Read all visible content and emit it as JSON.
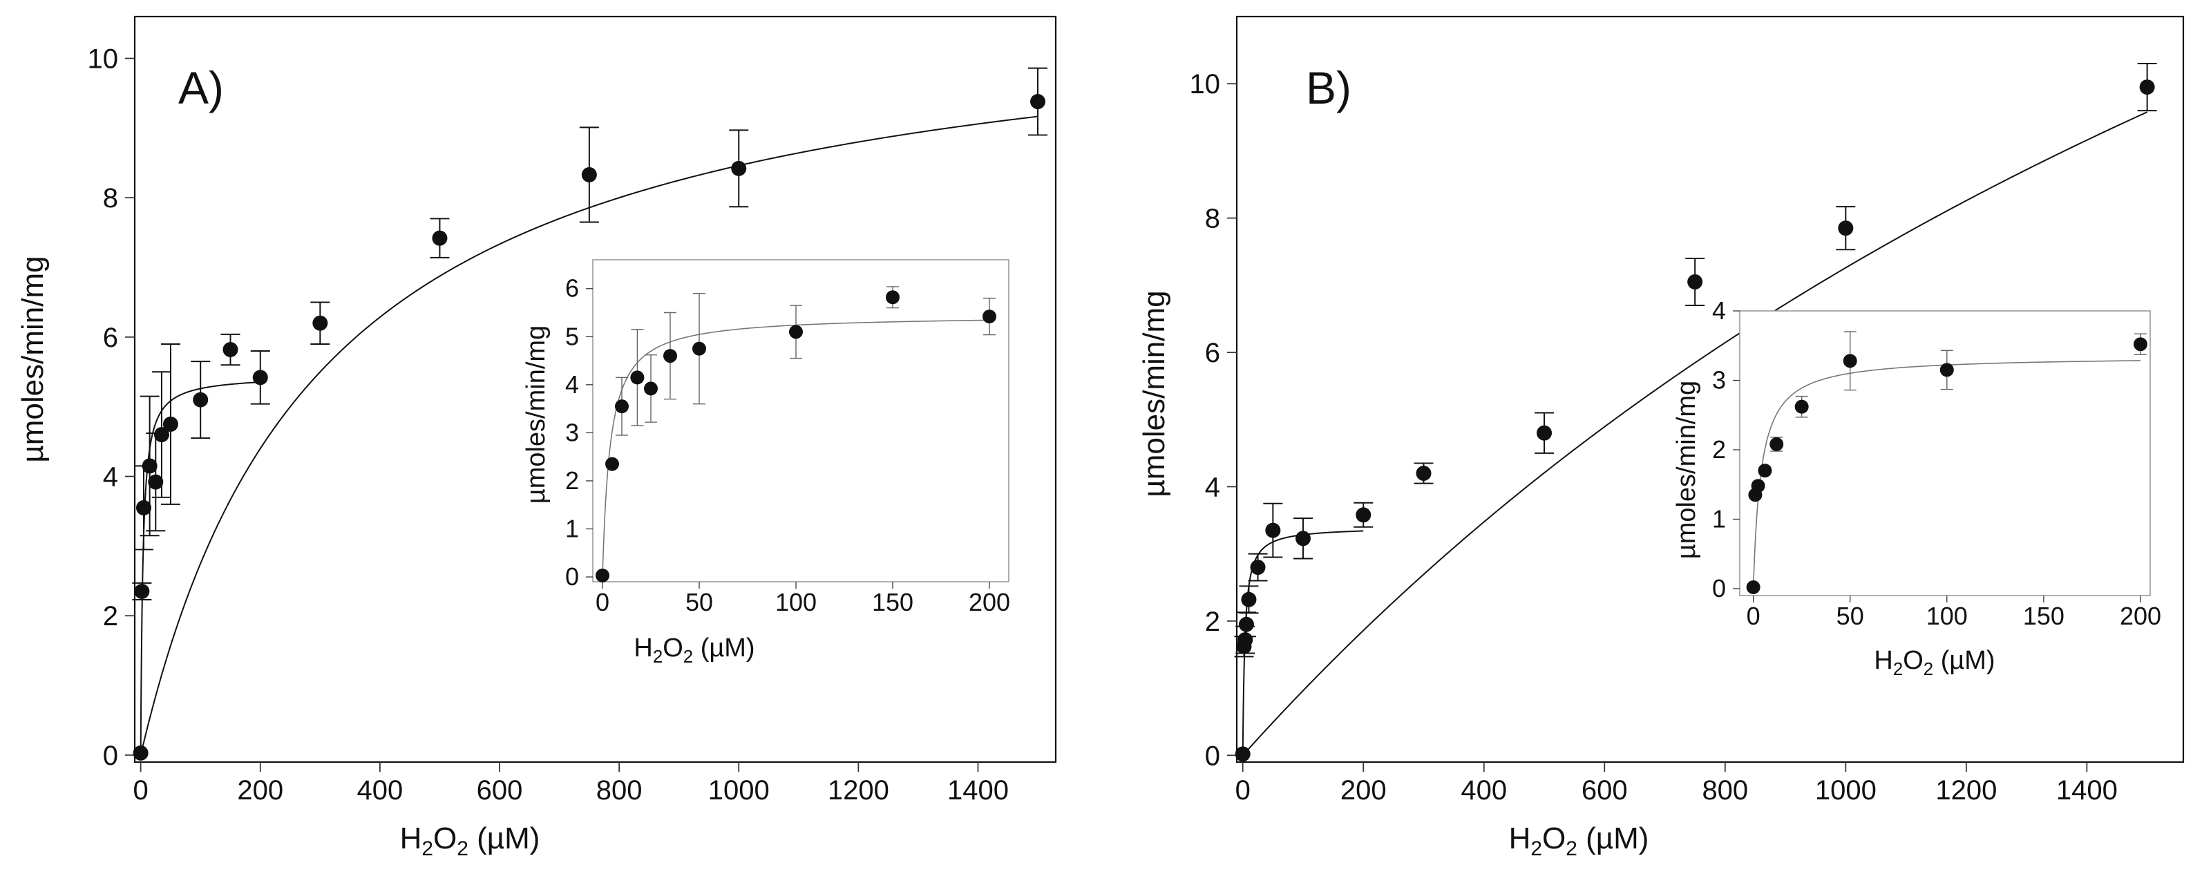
{
  "figure": {
    "panels": [
      {
        "label": "A)",
        "x_label": "H2O2 (µM)",
        "y_label": "µmoles/min/mg"
      },
      {
        "label": "B)",
        "x_label": "H2O2 (µM)",
        "y_label": "µmoles/min/mg"
      }
    ]
  },
  "chart_data": [
    {
      "id": "A-main",
      "type": "scatter",
      "title": "A)",
      "xlabel": "H2O2 (µM)",
      "ylabel": "µmoles/min/mg",
      "xlim": [
        -10,
        1530
      ],
      "ylim": [
        -0.1,
        10.6
      ],
      "xticks": [
        0,
        200,
        400,
        600,
        800,
        1000,
        1200,
        1400
      ],
      "yticks": [
        0,
        2,
        4,
        6,
        8,
        10
      ],
      "points": [
        {
          "x": 0,
          "y": 0.03,
          "err": 0
        },
        {
          "x": 2,
          "y": 2.35,
          "err": 0.12
        },
        {
          "x": 5,
          "y": 3.55,
          "err": 0.6
        },
        {
          "x": 15,
          "y": 4.15,
          "err": 1.0
        },
        {
          "x": 25,
          "y": 3.92,
          "err": 0.7
        },
        {
          "x": 35,
          "y": 4.6,
          "err": 0.9
        },
        {
          "x": 50,
          "y": 4.75,
          "err": 1.15
        },
        {
          "x": 100,
          "y": 5.1,
          "err": 0.55
        },
        {
          "x": 150,
          "y": 5.82,
          "err": 0.22
        },
        {
          "x": 200,
          "y": 5.42,
          "err": 0.38
        },
        {
          "x": 300,
          "y": 6.2,
          "err": 0.3
        },
        {
          "x": 500,
          "y": 7.42,
          "err": 0.28
        },
        {
          "x": 750,
          "y": 8.33,
          "err": 0.68
        },
        {
          "x": 1000,
          "y": 8.42,
          "err": 0.55
        },
        {
          "x": 1500,
          "y": 9.38,
          "err": 0.48
        }
      ],
      "fits": [
        {
          "vmax": 11.0,
          "km": 300,
          "x_start": 0,
          "x_end": 1500
        },
        {
          "vmax": 5.45,
          "km": 3.6,
          "x_start": 0,
          "x_end": 200
        }
      ]
    },
    {
      "id": "A-inset",
      "type": "scatter",
      "xlabel": "H2O2 (µM)",
      "ylabel": "µmoles/min/mg",
      "xlim": [
        -5,
        210
      ],
      "ylim": [
        -0.1,
        6.6
      ],
      "xticks": [
        0,
        50,
        100,
        150,
        200
      ],
      "yticks": [
        0,
        1,
        2,
        3,
        4,
        5,
        6
      ],
      "points": [
        {
          "x": 0,
          "y": 0.03,
          "err": 0
        },
        {
          "x": 5,
          "y": 2.35,
          "err": 0
        },
        {
          "x": 10,
          "y": 3.55,
          "err": 0.6
        },
        {
          "x": 18,
          "y": 4.15,
          "err": 1.0
        },
        {
          "x": 25,
          "y": 3.92,
          "err": 0.7
        },
        {
          "x": 35,
          "y": 4.6,
          "err": 0.9
        },
        {
          "x": 50,
          "y": 4.75,
          "err": 1.15
        },
        {
          "x": 100,
          "y": 5.1,
          "err": 0.55
        },
        {
          "x": 150,
          "y": 5.82,
          "err": 0.22
        },
        {
          "x": 200,
          "y": 5.42,
          "err": 0.38
        }
      ],
      "fits": [
        {
          "vmax": 5.45,
          "km": 4.0,
          "x_start": 0,
          "x_end": 200
        }
      ]
    },
    {
      "id": "B-main",
      "type": "scatter",
      "title": "B)",
      "xlabel": "H2O2 (µM)",
      "ylabel": "µmoles/min/mg",
      "xlim": [
        -10,
        1560
      ],
      "ylim": [
        -0.1,
        11.0
      ],
      "xticks": [
        0,
        200,
        400,
        600,
        800,
        1000,
        1200,
        1400
      ],
      "yticks": [
        0,
        2,
        4,
        6,
        8,
        10
      ],
      "points": [
        {
          "x": 0,
          "y": 0.02,
          "err": 0
        },
        {
          "x": 2,
          "y": 1.62,
          "err": 0.15
        },
        {
          "x": 4,
          "y": 1.72,
          "err": 0.2
        },
        {
          "x": 6,
          "y": 1.95,
          "err": 0.18
        },
        {
          "x": 10,
          "y": 2.32,
          "err": 0.2
        },
        {
          "x": 25,
          "y": 2.8,
          "err": 0.2
        },
        {
          "x": 50,
          "y": 3.35,
          "err": 0.4
        },
        {
          "x": 100,
          "y": 3.23,
          "err": 0.3
        },
        {
          "x": 200,
          "y": 3.58,
          "err": 0.18
        },
        {
          "x": 300,
          "y": 4.2,
          "err": 0.15
        },
        {
          "x": 500,
          "y": 4.8,
          "err": 0.3
        },
        {
          "x": 750,
          "y": 7.05,
          "err": 0.35
        },
        {
          "x": 1000,
          "y": 7.85,
          "err": 0.32
        },
        {
          "x": 1500,
          "y": 9.95,
          "err": 0.35
        }
      ],
      "fits": [
        {
          "vmax": 26.5,
          "km": 2650,
          "x_start": 0,
          "x_end": 1500
        },
        {
          "vmax": 3.4,
          "km": 3.5,
          "x_start": 0,
          "x_end": 200
        }
      ]
    },
    {
      "id": "B-inset",
      "type": "scatter",
      "xlabel": "H2O2 (µM)",
      "ylabel": "µmoles/min/mg",
      "xlim": [
        -7,
        205
      ],
      "ylim": [
        -0.1,
        4.0
      ],
      "xticks": [
        0,
        50,
        100,
        150,
        200
      ],
      "yticks": [
        0,
        1,
        2,
        3,
        4
      ],
      "points": [
        {
          "x": 0,
          "y": 0.02,
          "err": 0
        },
        {
          "x": 1,
          "y": 1.35,
          "err": 0
        },
        {
          "x": 2.5,
          "y": 1.48,
          "err": 0
        },
        {
          "x": 6,
          "y": 1.7,
          "err": 0
        },
        {
          "x": 12,
          "y": 2.08,
          "err": 0.1
        },
        {
          "x": 25,
          "y": 2.62,
          "err": 0.15
        },
        {
          "x": 50,
          "y": 3.28,
          "err": 0.42
        },
        {
          "x": 100,
          "y": 3.15,
          "err": 0.28
        },
        {
          "x": 200,
          "y": 3.52,
          "err": 0.15
        }
      ],
      "fits": [
        {
          "vmax": 3.35,
          "km": 4.0,
          "x_start": 0,
          "x_end": 200
        }
      ]
    }
  ]
}
